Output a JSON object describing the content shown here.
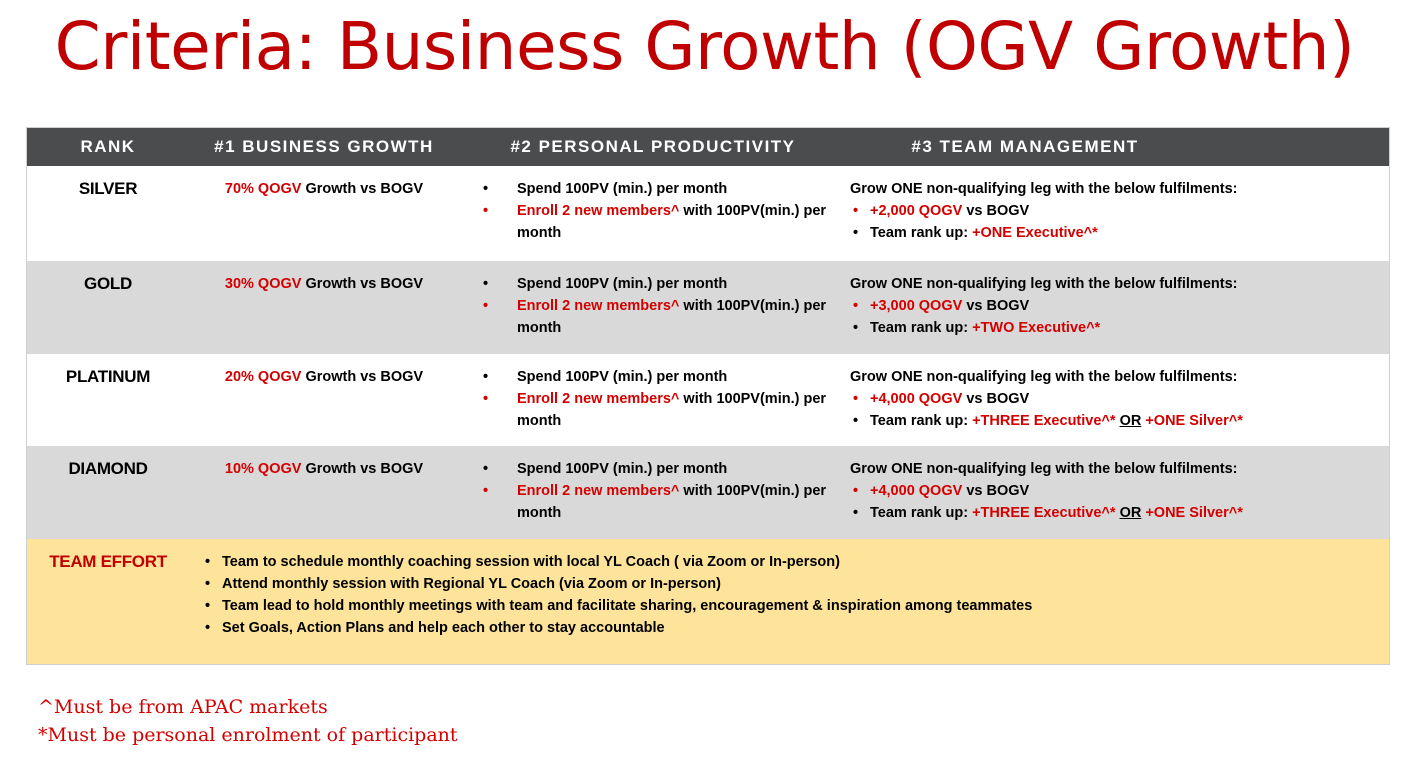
{
  "title": "Criteria: Business Growth (OGV Growth)",
  "headers": {
    "rank": "RANK",
    "business_growth": "#1 BUSINESS GROWTH",
    "personal_productivity": "#2 PERSONAL PRODUCTIVITY",
    "team_management": "#3 TEAM MANAGEMENT"
  },
  "common": {
    "spend": "Spend 100PV (min.) per month",
    "enroll_red": "Enroll 2 new members^",
    "enroll_rest": " with 100PV(min.) per month",
    "growth_suffix": " Growth vs BOGV",
    "grow_leg": "Grow ONE non-qualifying leg with the below fulfilments:",
    "vs_bogv": " vs BOGV",
    "rank_up": "Team rank up: ",
    "or": "OR"
  },
  "rows": [
    {
      "rank": "SILVER",
      "growth_pct": "70% QOGV",
      "qogv": "+2,000 QOGV",
      "rank_up_a": "+ONE Executive^*",
      "rank_up_b": ""
    },
    {
      "rank": "GOLD",
      "growth_pct": "30% QOGV",
      "qogv": "+3,000 QOGV",
      "rank_up_a": "+TWO Executive^*",
      "rank_up_b": ""
    },
    {
      "rank": "PLATINUM",
      "growth_pct": "20% QOGV",
      "qogv": "+4,000 QOGV",
      "rank_up_a": "+THREE Executive^*",
      "rank_up_b": "+ONE Silver^*"
    },
    {
      "rank": "DIAMOND",
      "growth_pct": "10% QOGV",
      "qogv": "+4,000 QOGV",
      "rank_up_a": "+THREE Executive^*",
      "rank_up_b": "+ONE Silver^*"
    }
  ],
  "team_effort": {
    "label": "TEAM EFFORT",
    "items": [
      "Team to schedule monthly coaching session with local YL Coach ( via Zoom or In-person)",
      "Attend monthly session with Regional YL Coach (via Zoom or In-person)",
      "Team lead to hold monthly meetings with team and facilitate sharing, encouragement & inspiration among teammates",
      "Set Goals, Action Plans and help each other to stay accountable"
    ]
  },
  "footnotes": [
    "^Must be from APAC markets",
    "*Must be personal enrolment of participant"
  ]
}
